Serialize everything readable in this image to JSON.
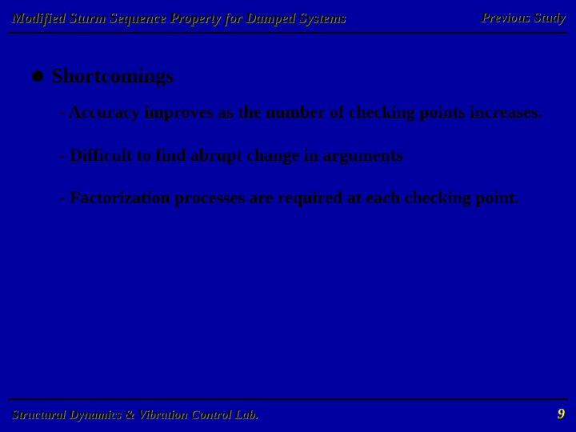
{
  "header": {
    "title_left": "Modified Sturm Sequence Property for Damped Systems",
    "title_right": "Previous Study"
  },
  "main": {
    "heading": "Shortcomings",
    "items": [
      "- Accuracy improves as the number of checking points increases.",
      "- Difficult to find abrupt change in arguments",
      "- Factorization processes are required at each checking point."
    ]
  },
  "footer": {
    "lab": "Structural Dynamics & Vibration Control Lab.",
    "page": "9"
  },
  "style": {
    "background": "#0000a0",
    "text_color": "#000000",
    "accent_color": "#ffff00",
    "shadow_color": "#808080",
    "title_fontsize_pt": 14,
    "heading_fontsize_pt": 20,
    "body_fontsize_pt": 17,
    "footer_fontsize_pt": 12
  }
}
